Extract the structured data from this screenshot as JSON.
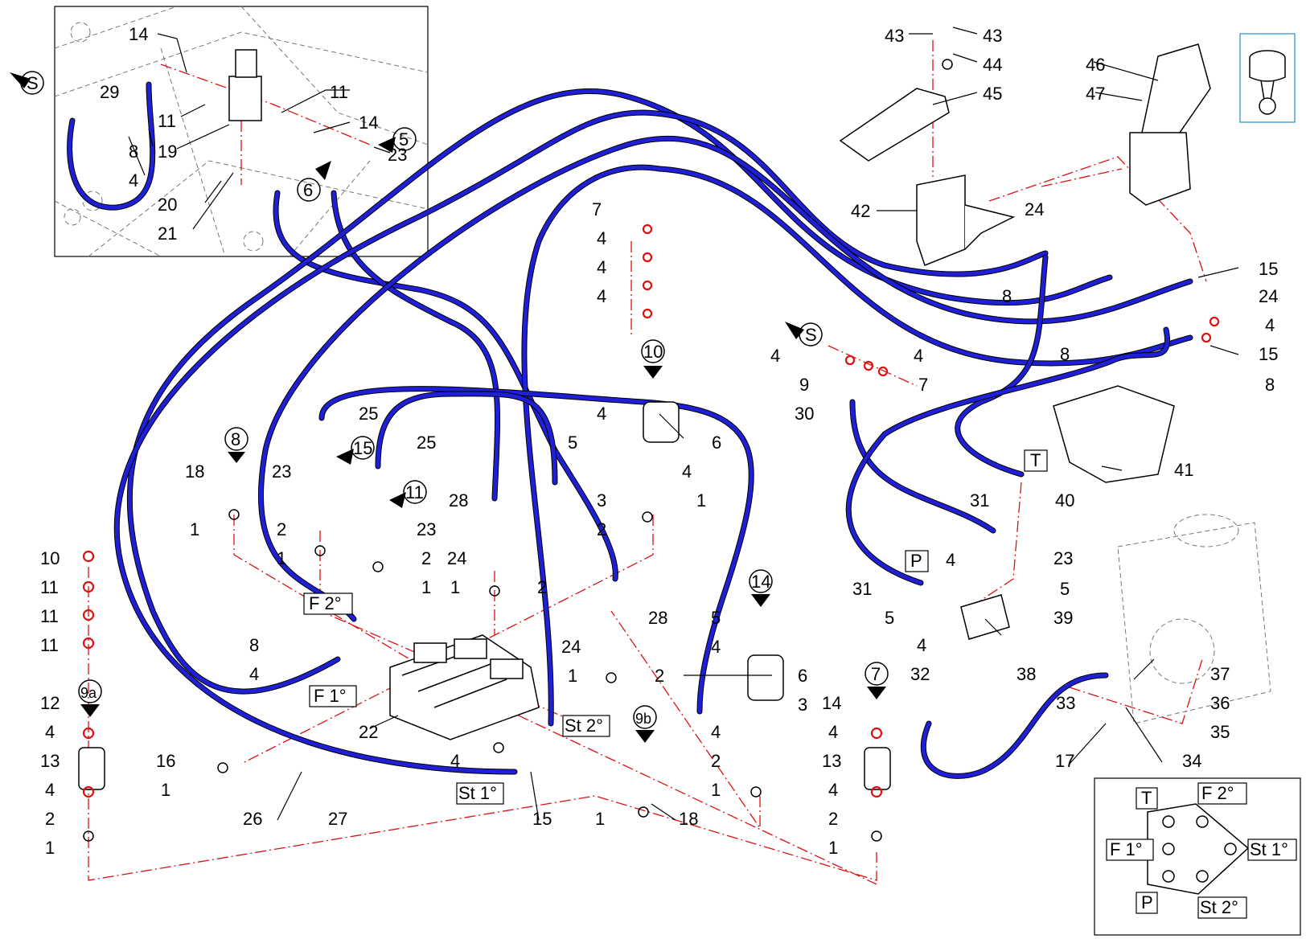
{
  "labels": {
    "n1": "1",
    "n2": "2",
    "n3": "3",
    "n4": "4",
    "n5": "5",
    "n6": "6",
    "n7": "7",
    "n8": "8",
    "n9": "9",
    "n10": "10",
    "n11": "11",
    "n12": "12",
    "n13": "13",
    "n14": "14",
    "n15": "15",
    "n16": "16",
    "n17": "17",
    "n18": "18",
    "n19": "19",
    "n20": "20",
    "n21": "21",
    "n22": "22",
    "n23": "23",
    "n24": "24",
    "n25": "25",
    "n26": "26",
    "n27": "27",
    "n28": "28",
    "n29": "29",
    "n30": "30",
    "n31": "31",
    "n32": "32",
    "n33": "33",
    "n34": "34",
    "n35": "35",
    "n36": "36",
    "n37": "37",
    "n38": "38",
    "n39": "39",
    "n40": "40",
    "n41": "41",
    "n42": "42",
    "n43": "43",
    "n44": "44",
    "n45": "45",
    "n46": "46",
    "n47": "47"
  },
  "callouts": {
    "s": "S",
    "c5": "5",
    "c6": "6",
    "c7": "7",
    "c8": "8",
    "c9a": "9a",
    "c9b": "9b",
    "c10": "10",
    "c11": "11",
    "c14": "14",
    "c15": "15"
  },
  "ports": {
    "T": "T",
    "P": "P",
    "F1": "F 1°",
    "F2": "F 2°",
    "St1": "St 1°",
    "St2": "St 2°"
  },
  "colors": {
    "hose": "#1f1fd6",
    "centerline": "#dd1111",
    "outline": "#000000"
  }
}
